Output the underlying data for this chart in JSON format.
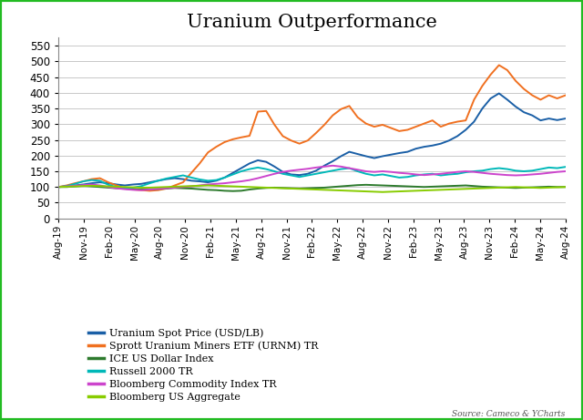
{
  "title": "Uranium Outperformance",
  "source": "Source: Cameco & YCharts",
  "background_color": "#ffffff",
  "border_color": "#22bb22",
  "ylim": [
    0,
    575
  ],
  "yticks": [
    0,
    50,
    100,
    150,
    200,
    250,
    300,
    350,
    400,
    450,
    500,
    550
  ],
  "series": {
    "Uranium Spot Price (USD/LB)": {
      "color": "#1a5fa6",
      "data": [
        100,
        102,
        105,
        108,
        112,
        115,
        112,
        108,
        105,
        108,
        110,
        115,
        120,
        125,
        128,
        125,
        120,
        118,
        115,
        120,
        130,
        145,
        160,
        175,
        185,
        180,
        165,
        148,
        140,
        138,
        142,
        152,
        168,
        182,
        198,
        212,
        205,
        198,
        192,
        198,
        203,
        208,
        212,
        222,
        228,
        232,
        238,
        248,
        262,
        282,
        308,
        350,
        382,
        398,
        378,
        356,
        338,
        328,
        312,
        318,
        313,
        318
      ]
    },
    "Sprott Uranium Miners ETF (URNM) TR": {
      "color": "#f07020",
      "data": [
        100,
        105,
        112,
        118,
        125,
        128,
        115,
        105,
        95,
        92,
        90,
        88,
        90,
        95,
        105,
        115,
        145,
        175,
        210,
        228,
        243,
        252,
        258,
        263,
        340,
        342,
        298,
        262,
        248,
        238,
        248,
        272,
        298,
        328,
        348,
        358,
        322,
        302,
        292,
        298,
        288,
        278,
        282,
        292,
        302,
        312,
        292,
        302,
        308,
        312,
        378,
        422,
        458,
        488,
        472,
        438,
        412,
        392,
        378,
        392,
        382,
        392
      ]
    },
    "ICE US Dollar Index": {
      "color": "#2d7a2d",
      "data": [
        100,
        100,
        102,
        104,
        102,
        100,
        98,
        96,
        95,
        93,
        92,
        93,
        94,
        95,
        97,
        96,
        95,
        93,
        91,
        90,
        88,
        87,
        88,
        92,
        95,
        97,
        98,
        97,
        96,
        95,
        96,
        97,
        98,
        100,
        102,
        104,
        106,
        107,
        106,
        105,
        104,
        103,
        102,
        101,
        100,
        101,
        102,
        103,
        104,
        105,
        103,
        101,
        100,
        99,
        98,
        97,
        98,
        99,
        100,
        101,
        100,
        100
      ]
    },
    "Russell 2000 TR": {
      "color": "#00b8b8",
      "data": [
        100,
        103,
        110,
        118,
        122,
        120,
        107,
        100,
        96,
        98,
        103,
        112,
        120,
        127,
        132,
        137,
        130,
        124,
        120,
        122,
        130,
        140,
        150,
        157,
        162,
        157,
        150,
        142,
        137,
        132,
        137,
        142,
        147,
        152,
        157,
        160,
        150,
        142,
        137,
        140,
        135,
        130,
        132,
        137,
        140,
        142,
        137,
        140,
        142,
        147,
        150,
        152,
        157,
        160,
        157,
        152,
        150,
        152,
        157,
        162,
        160,
        164
      ]
    },
    "Bloomberg Commodity Index TR": {
      "color": "#cc44cc",
      "data": [
        100,
        102,
        104,
        106,
        108,
        105,
        100,
        96,
        93,
        91,
        90,
        92,
        94,
        96,
        98,
        100,
        102,
        105,
        108,
        110,
        112,
        115,
        118,
        122,
        128,
        135,
        142,
        148,
        152,
        155,
        158,
        162,
        165,
        168,
        165,
        160,
        155,
        150,
        148,
        150,
        148,
        145,
        143,
        140,
        138,
        140,
        142,
        145,
        148,
        150,
        148,
        145,
        142,
        140,
        138,
        137,
        138,
        140,
        142,
        145,
        148,
        150
      ]
    },
    "Bloomberg US Aggregate": {
      "color": "#88cc00",
      "data": [
        100,
        101,
        102,
        103,
        104,
        103,
        102,
        101,
        100,
        99,
        98,
        98,
        99,
        100,
        101,
        102,
        103,
        104,
        105,
        104,
        103,
        102,
        101,
        100,
        99,
        98,
        97,
        96,
        95,
        94,
        93,
        92,
        91,
        90,
        89,
        88,
        87,
        86,
        85,
        84,
        85,
        86,
        87,
        88,
        89,
        90,
        91,
        92,
        93,
        94,
        95,
        96,
        97,
        98,
        99,
        100,
        99,
        98,
        97,
        98,
        99,
        100
      ]
    }
  },
  "xtick_labels": [
    "Aug-19",
    "Nov-19",
    "Feb-20",
    "May-20",
    "Aug-20",
    "Nov-20",
    "Feb-21",
    "May-21",
    "Aug-21",
    "Nov-21",
    "Feb-22",
    "May-22",
    "Aug-22",
    "Nov-22",
    "Feb-23",
    "May-23",
    "Aug-23",
    "Nov-23",
    "Feb-24",
    "May-24",
    "Aug-24"
  ],
  "legend_entries": [
    {
      "label": "Uranium Spot Price (USD/LB)",
      "color": "#1a5fa6"
    },
    {
      "label": "Sprott Uranium Miners ETF (URNM) TR",
      "color": "#f07020"
    },
    {
      "label": "ICE US Dollar Index",
      "color": "#2d7a2d"
    },
    {
      "label": "Russell 2000 TR",
      "color": "#00b8b8"
    },
    {
      "label": "Bloomberg Commodity Index TR",
      "color": "#cc44cc"
    },
    {
      "label": "Bloomberg US Aggregate",
      "color": "#88cc00"
    }
  ]
}
